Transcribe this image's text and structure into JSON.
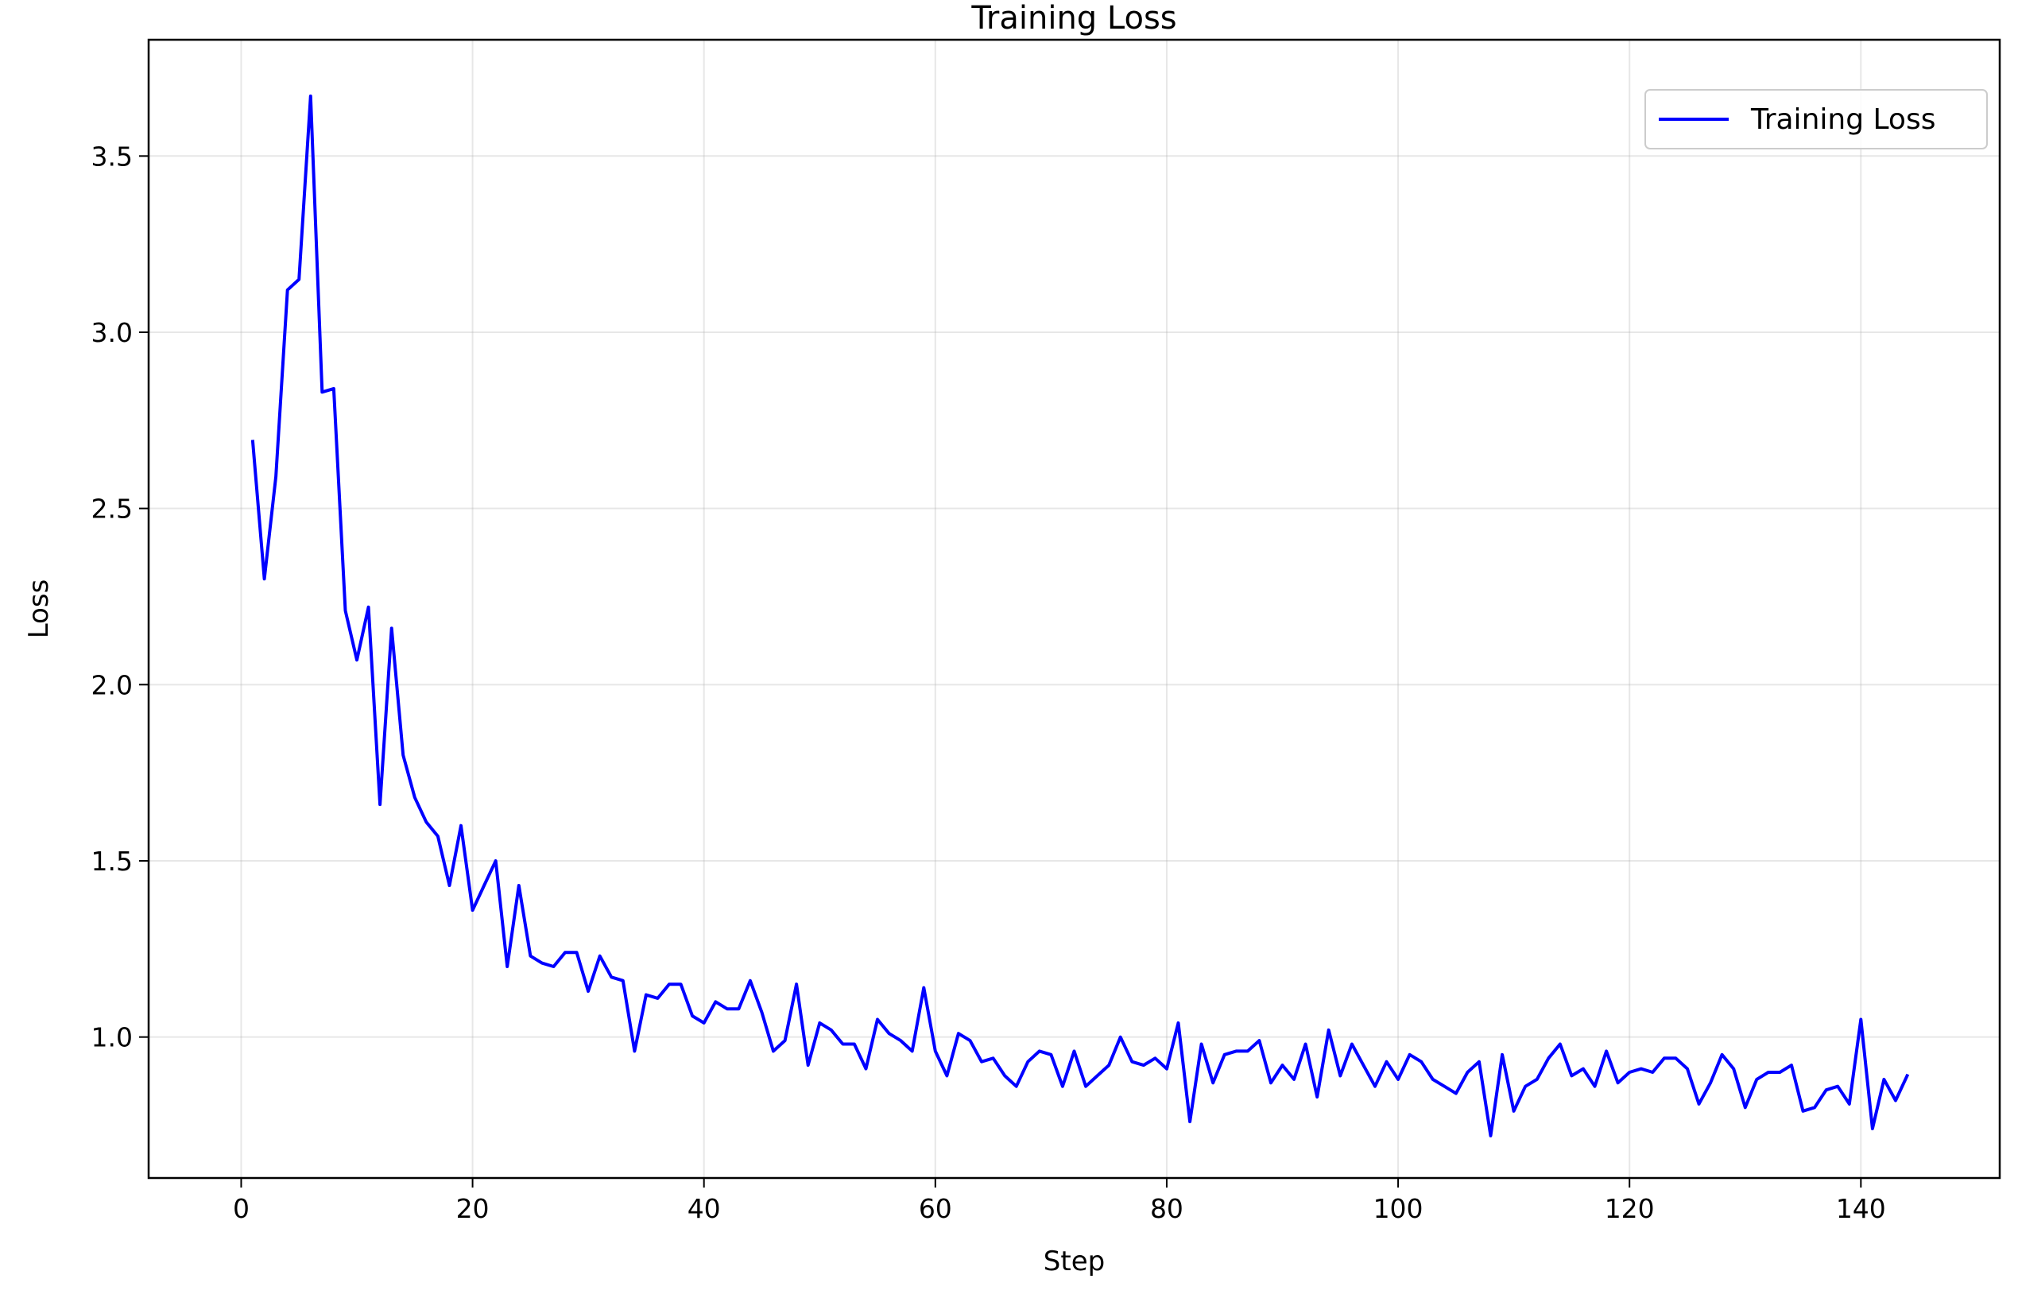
{
  "chart_data": {
    "type": "line",
    "title": "Training Loss",
    "xlabel": "Step",
    "ylabel": "Loss",
    "xlim": [
      -8,
      152
    ],
    "ylim": [
      0.6,
      3.83
    ],
    "xticks": [
      0,
      20,
      40,
      60,
      80,
      100,
      120,
      140
    ],
    "yticks": [
      1.0,
      1.5,
      2.0,
      2.5,
      3.0,
      3.5
    ],
    "xtick_labels": [
      "0",
      "20",
      "40",
      "60",
      "80",
      "100",
      "120",
      "140"
    ],
    "ytick_labels": [
      "1.0",
      "1.5",
      "2.0",
      "2.5",
      "3.0",
      "3.5"
    ],
    "grid": true,
    "legend_position": "top-right",
    "series": [
      {
        "name": "Training Loss",
        "color": "#0000ff",
        "x": [
          1,
          2,
          3,
          4,
          5,
          6,
          7,
          8,
          9,
          10,
          11,
          12,
          13,
          14,
          15,
          16,
          17,
          18,
          19,
          20,
          21,
          22,
          23,
          24,
          25,
          26,
          27,
          28,
          29,
          30,
          31,
          32,
          33,
          34,
          35,
          36,
          37,
          38,
          39,
          40,
          41,
          42,
          43,
          44,
          45,
          46,
          47,
          48,
          49,
          50,
          51,
          52,
          53,
          54,
          55,
          56,
          57,
          58,
          59,
          60,
          61,
          62,
          63,
          64,
          65,
          66,
          67,
          68,
          69,
          70,
          71,
          72,
          73,
          74,
          75,
          76,
          77,
          78,
          79,
          80,
          81,
          82,
          83,
          84,
          85,
          86,
          87,
          88,
          89,
          90,
          91,
          92,
          93,
          94,
          95,
          96,
          97,
          98,
          99,
          100,
          101,
          102,
          103,
          104,
          105,
          106,
          107,
          108,
          109,
          110,
          111,
          112,
          113,
          114,
          115,
          116,
          117,
          118,
          119,
          120,
          121,
          122,
          123,
          124,
          125,
          126,
          127,
          128,
          129,
          130,
          131,
          132,
          133,
          134,
          135,
          136,
          137,
          138,
          139,
          140,
          141,
          142,
          143,
          144
        ],
        "values": [
          2.69,
          2.3,
          2.59,
          3.12,
          3.15,
          3.67,
          2.83,
          2.84,
          2.21,
          2.07,
          2.22,
          1.66,
          2.16,
          1.8,
          1.68,
          1.61,
          1.57,
          1.43,
          1.6,
          1.36,
          1.43,
          1.5,
          1.2,
          1.43,
          1.23,
          1.21,
          1.2,
          1.24,
          1.24,
          1.13,
          1.23,
          1.17,
          1.16,
          0.96,
          1.12,
          1.11,
          1.15,
          1.15,
          1.06,
          1.04,
          1.1,
          1.08,
          1.08,
          1.16,
          1.07,
          0.96,
          0.99,
          1.15,
          0.92,
          1.04,
          1.02,
          0.98,
          0.98,
          0.91,
          1.05,
          1.01,
          0.99,
          0.96,
          1.14,
          0.96,
          0.89,
          1.01,
          0.99,
          0.93,
          0.94,
          0.89,
          0.86,
          0.93,
          0.96,
          0.95,
          0.86,
          0.96,
          0.86,
          0.89,
          0.92,
          1.0,
          0.93,
          0.92,
          0.94,
          0.91,
          1.04,
          0.76,
          0.98,
          0.87,
          0.95,
          0.96,
          0.96,
          0.99,
          0.87,
          0.92,
          0.88,
          0.98,
          0.83,
          1.02,
          0.89,
          0.98,
          0.92,
          0.86,
          0.93,
          0.88,
          0.95,
          0.93,
          0.88,
          0.86,
          0.84,
          0.9,
          0.93,
          0.72,
          0.95,
          0.79,
          0.86,
          0.88,
          0.94,
          0.98,
          0.89,
          0.91,
          0.86,
          0.96,
          0.87,
          0.9,
          0.91,
          0.9,
          0.94,
          0.94,
          0.91,
          0.81,
          0.87,
          0.95,
          0.91,
          0.8,
          0.88,
          0.9,
          0.9,
          0.92,
          0.79,
          0.8,
          0.85,
          0.86,
          0.81,
          1.05,
          0.74,
          0.88,
          0.82,
          0.89
        ]
      }
    ]
  }
}
